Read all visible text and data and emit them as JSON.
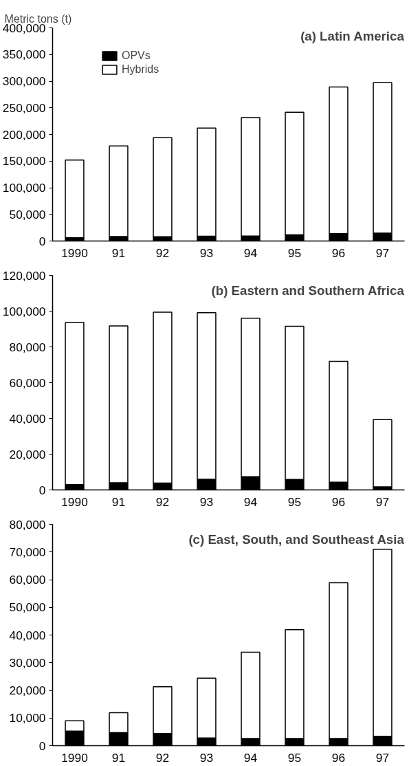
{
  "chart_data": [
    {
      "type": "bar",
      "title": "(a) Latin America",
      "ylabel": "Metric tons (t)",
      "categories": [
        "1990",
        "91",
        "92",
        "93",
        "94",
        "95",
        "96",
        "97"
      ],
      "stacked": true,
      "legend": "top left",
      "grid": false,
      "series": [
        {
          "name": "OPVs",
          "color": "#000000",
          "values": [
            6000,
            8500,
            8000,
            9000,
            9500,
            11500,
            14000,
            15000
          ]
        },
        {
          "name": "Hybrids",
          "color": "#ffffff",
          "values": [
            146000,
            170000,
            186000,
            203000,
            222000,
            230000,
            275000,
            282000
          ]
        }
      ],
      "ylim": [
        0,
        400000
      ],
      "yticks": [
        {
          "value": 0,
          "label": "0"
        },
        {
          "value": 50000,
          "label": "50,000"
        },
        {
          "value": 100000,
          "label": "100,000"
        },
        {
          "value": 150000,
          "label": "150,000"
        },
        {
          "value": 200000,
          "label": "200,000"
        },
        {
          "value": 250000,
          "label": "250,000"
        },
        {
          "value": 300000,
          "label": "300,000"
        },
        {
          "value": 350000,
          "label": "350,000"
        },
        {
          "value": 400000,
          "label": "400,000"
        }
      ]
    },
    {
      "type": "bar",
      "title": "(b) Eastern and Southern Africa",
      "categories": [
        "1990",
        "91",
        "92",
        "93",
        "94",
        "95",
        "96",
        "97"
      ],
      "stacked": true,
      "legend": false,
      "grid": false,
      "series": [
        {
          "color": "#000000",
          "values": [
            3000,
            4000,
            3800,
            6000,
            7400,
            5900,
            4300,
            1700
          ]
        },
        {
          "color": "#ffffff",
          "values": [
            90700,
            87700,
            95600,
            93100,
            88700,
            85600,
            67600,
            37600
          ]
        }
      ],
      "ylim": [
        0,
        120000
      ],
      "yticks": [
        {
          "value": 0,
          "label": "0"
        },
        {
          "value": 20000,
          "label": "20,000"
        },
        {
          "value": 40000,
          "label": "40,000"
        },
        {
          "value": 60000,
          "label": "60,000"
        },
        {
          "value": 80000,
          "label": "80,000"
        },
        {
          "value": 100000,
          "label": "100,000"
        },
        {
          "value": 120000,
          "label": "120,000"
        }
      ]
    },
    {
      "type": "bar",
      "title": "(c) East, South, and Southeast Asia",
      "categories": [
        "1990",
        "91",
        "92",
        "93",
        "94",
        "95",
        "96",
        "97"
      ],
      "stacked": true,
      "legend": false,
      "grid": false,
      "series": [
        {
          "color": "#000000",
          "values": [
            5300,
            4700,
            4400,
            2800,
            2600,
            2600,
            2600,
            3400
          ]
        },
        {
          "color": "#ffffff",
          "values": [
            3700,
            7200,
            16900,
            21600,
            31200,
            39300,
            56300,
            67600
          ]
        }
      ],
      "ylim": [
        0,
        80000
      ],
      "yticks": [
        {
          "value": 0,
          "label": "0"
        },
        {
          "value": 10000,
          "label": "10,000"
        },
        {
          "value": 20000,
          "label": "20,000"
        },
        {
          "value": 30000,
          "label": "30,000"
        },
        {
          "value": 40000,
          "label": "40,000"
        },
        {
          "value": 50000,
          "label": "50,000"
        },
        {
          "value": 60000,
          "label": "60,000"
        },
        {
          "value": 70000,
          "label": "70,000"
        },
        {
          "value": 80000,
          "label": "80,000"
        }
      ]
    }
  ]
}
